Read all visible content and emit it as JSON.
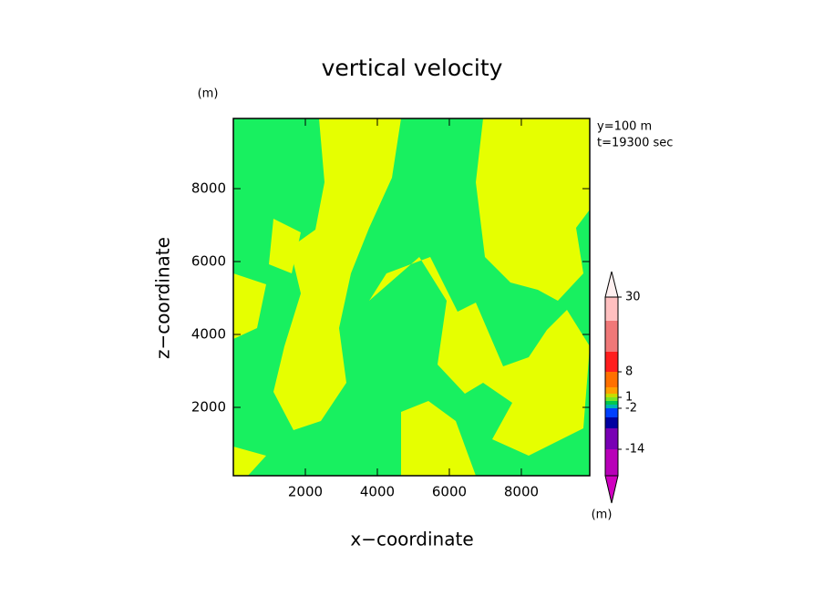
{
  "chart_data": {
    "type": "contour",
    "title": "vertical velocity",
    "x_label": "x−coordinate",
    "y_label": "z−coordinate",
    "x_unit": "(m)",
    "y_unit": "(m)",
    "annotations": [
      "y=100 m",
      "t=19300 sec"
    ],
    "xlim": [
      0,
      9900
    ],
    "ylim": [
      125,
      9925
    ],
    "xticks": [
      2000,
      4000,
      6000,
      8000
    ],
    "yticks": [
      2000,
      4000,
      6000,
      8000
    ],
    "field_colors": [
      "#18f060",
      "#e6ff00"
    ],
    "colorbar": {
      "unit": "(m)",
      "levels": [
        null,
        -14,
        null,
        null,
        -2,
        null,
        null,
        1,
        null,
        null,
        8,
        null,
        null,
        30
      ],
      "colors": [
        "#d000c0",
        "#b800b8",
        "#7800b4",
        "#0000a0",
        "#0040ff",
        "#00b4b4",
        "#00c850",
        "#78e628",
        "#c8dc00",
        "#ffa000",
        "#ff7000",
        "#ff1e1e",
        "#f07878",
        "#ffc0c0",
        "#fff0f0"
      ]
    }
  }
}
